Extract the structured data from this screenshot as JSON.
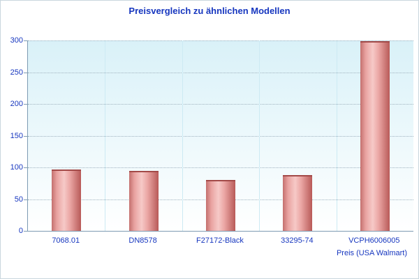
{
  "chart_data": {
    "type": "bar",
    "title": "Preisvergleich zu ähnlichen Modellen",
    "categories": [
      "7068.01",
      "DN8578",
      "F27172-Black",
      "33295-74",
      "VCPH6006005"
    ],
    "values": [
      97,
      94,
      80,
      88,
      299
    ],
    "xlabel": "Preis (USA Walmart)",
    "ylabel": "",
    "ylim": [
      0,
      300
    ],
    "yticks": [
      0,
      50,
      100,
      150,
      200,
      250,
      300
    ],
    "grid": "horizontal-dotted",
    "legend": "none",
    "colors": {
      "text": "#1636bf",
      "bar_light": "#f6c9c7",
      "bar_dark": "#b85a58",
      "bar_cap": "#a34a48",
      "plot_bg_top": "#d9f1f8",
      "plot_bg_bottom": "#ffffff",
      "axis": "#7d9bb3",
      "gridline": "#9fb2bf"
    }
  }
}
